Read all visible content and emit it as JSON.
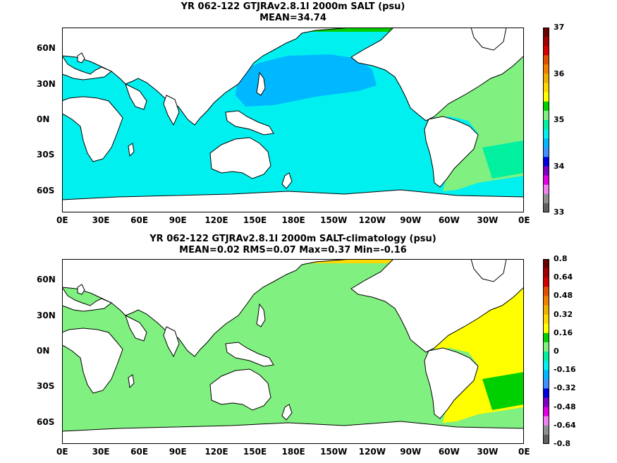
{
  "panels": [
    {
      "title": "YR 062-122 GTJRAv2.8.1l 2000m SALT (psu)",
      "subtitle": "MEAN=34.74",
      "colorbar": {
        "ticks": [
          "37",
          "36",
          "35",
          "34",
          "33"
        ],
        "colors": [
          "#6b0000",
          "#a00000",
          "#d20000",
          "#e05000",
          "#f08000",
          "#f0b000",
          "#ffd800",
          "#ffff00",
          "#00d000",
          "#80f080",
          "#00f0a0",
          "#00f0f0",
          "#00b8ff",
          "#4090ff",
          "#0000e0",
          "#8000c0",
          "#e000e0",
          "#f080f0",
          "#909090",
          "#606060"
        ]
      },
      "regions": {
        "background": "#00f0f0",
        "north_pacific": "#00b8ff",
        "atlantic": "#80f080",
        "atlantic_deep": "#00f0a0",
        "southern_ocean": "#00f0f0",
        "arctic": "#00d000"
      }
    },
    {
      "title": "YR 062-122 GTJRAv2.8.1l 2000m SALT-climatology (psu)",
      "subtitle": "MEAN=0.02   RMS=0.07   Max=0.37   Min=-0.16",
      "colorbar": {
        "ticks": [
          "0.8",
          "0.64",
          "0.48",
          "0.32",
          "0.16",
          "0",
          "-0.16",
          "-0.32",
          "-0.48",
          "-0.64",
          "-0.8"
        ],
        "colors": [
          "#6b0000",
          "#a00000",
          "#d20000",
          "#e05000",
          "#f08000",
          "#f0b000",
          "#ffd800",
          "#ffff00",
          "#00d000",
          "#80f080",
          "#00f0a0",
          "#00f0f0",
          "#00b8ff",
          "#4090ff",
          "#0000e0",
          "#8000c0",
          "#e000e0",
          "#f080f0",
          "#909090",
          "#606060"
        ]
      },
      "regions": {
        "background": "#80f080",
        "north_pacific": "#80f080",
        "atlantic": "#ffff00",
        "atlantic_deep": "#00d000",
        "southern_ocean": "#80f080",
        "arctic": "#ffd800"
      }
    }
  ],
  "axes": {
    "x_ticks": [
      "0E",
      "30E",
      "60E",
      "90E",
      "120E",
      "150E",
      "180E",
      "150W",
      "120W",
      "90W",
      "60W",
      "30W",
      "0E"
    ],
    "y_ticks": [
      "60N",
      "30N",
      "0N",
      "30S",
      "60S"
    ]
  }
}
